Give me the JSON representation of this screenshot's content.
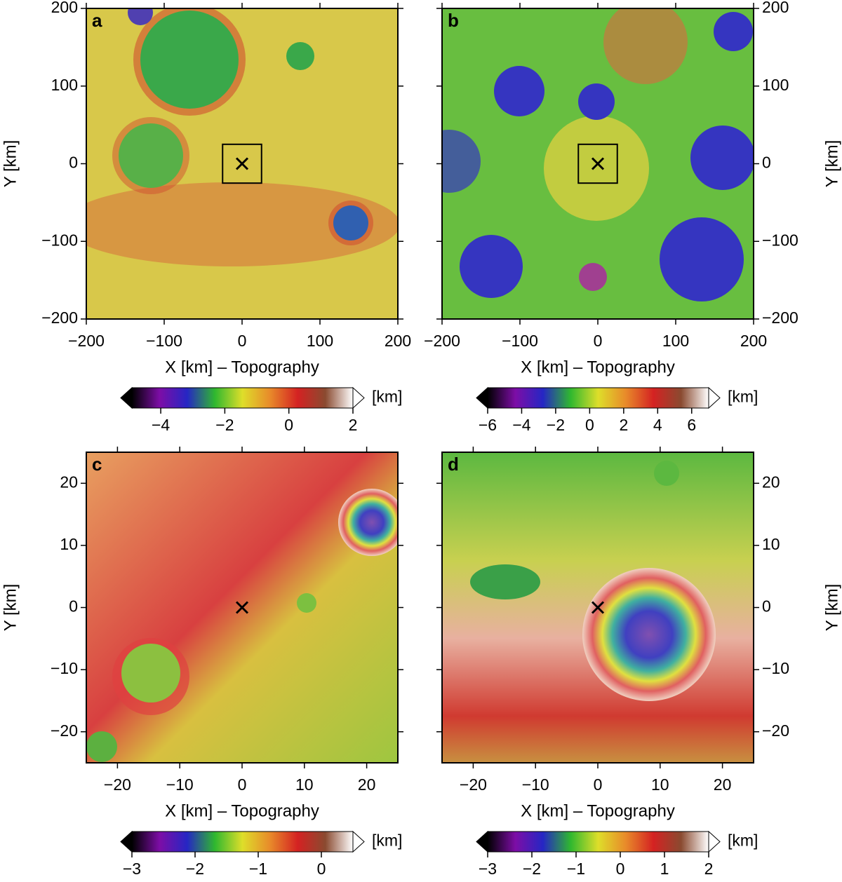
{
  "chart_data": [
    {
      "type": "map",
      "label": "a",
      "xlabel": "X [km] – Topography",
      "ylabel": "Y [km]",
      "y_axis_side": "left",
      "xlim": [
        -200,
        200
      ],
      "ylim": [
        -200,
        200
      ],
      "xticks": [
        {
          "value": -200,
          "label": "−200"
        },
        {
          "value": -100,
          "label": "−100"
        },
        0,
        100,
        200
      ],
      "yticks": [
        {
          "value": -200,
          "label": "−200"
        },
        {
          "value": -100,
          "label": "−100"
        },
        0,
        100,
        200
      ],
      "marker": {
        "x": 0,
        "y": 0
      },
      "box": {
        "x": [
          -25,
          25
        ],
        "y": [
          -25,
          25
        ]
      },
      "colorbar": {
        "label": "[km]",
        "lim": [
          -4.9,
          2
        ],
        "ticks": [
          {
            "value": -4,
            "label": "−4"
          },
          {
            "value": -2,
            "label": "−2"
          },
          0,
          2
        ],
        "colors": [
          "#000000",
          "#7d0da6",
          "#2626c4",
          "#2fb82f",
          "#dede2a",
          "#e88a2a",
          "#d42222",
          "#8a4a30",
          "#ffffff"
        ]
      }
    },
    {
      "type": "map",
      "label": "b",
      "xlabel": "X [km] – Topography",
      "ylabel": "Y [km]",
      "y_axis_side": "right",
      "xlim": [
        -200,
        200
      ],
      "ylim": [
        -200,
        200
      ],
      "xticks": [
        {
          "value": -200,
          "label": "−200"
        },
        {
          "value": -100,
          "label": "−100"
        },
        0,
        100,
        200
      ],
      "yticks": [
        {
          "value": -200,
          "label": "−200"
        },
        {
          "value": -100,
          "label": "−100"
        },
        0,
        100,
        200
      ],
      "marker": {
        "x": 0,
        "y": 0
      },
      "box": {
        "x": [
          -25,
          25
        ],
        "y": [
          -25,
          25
        ]
      },
      "colorbar": {
        "label": "[km]",
        "lim": [
          -6,
          7
        ],
        "ticks": [
          {
            "value": -6,
            "label": "−6"
          },
          {
            "value": -4,
            "label": "−4"
          },
          {
            "value": -2,
            "label": "−2"
          },
          0,
          2,
          4,
          6
        ],
        "colors": [
          "#000000",
          "#7d0da6",
          "#2626c4",
          "#2fb82f",
          "#dede2a",
          "#e88a2a",
          "#d42222",
          "#8a4a30",
          "#ffffff"
        ]
      }
    },
    {
      "type": "map",
      "label": "c",
      "xlabel": "X [km] – Topography",
      "ylabel": "Y [km]",
      "y_axis_side": "left",
      "xlim": [
        -25,
        25
      ],
      "ylim": [
        -25,
        25
      ],
      "xticks": [
        {
          "value": -20,
          "label": "−20"
        },
        {
          "value": -10,
          "label": "−10"
        },
        0,
        10,
        20
      ],
      "yticks": [
        {
          "value": -20,
          "label": "−20"
        },
        {
          "value": -10,
          "label": "−10"
        },
        0,
        10,
        20
      ],
      "marker": {
        "x": 0,
        "y": 0
      },
      "colorbar": {
        "label": "[km]",
        "lim": [
          -3,
          0.5
        ],
        "ticks": [
          {
            "value": -3,
            "label": "−3"
          },
          {
            "value": -2,
            "label": "−2"
          },
          {
            "value": -1,
            "label": "−1"
          },
          0
        ],
        "colors": [
          "#000000",
          "#7d0da6",
          "#2626c4",
          "#2fb82f",
          "#dede2a",
          "#e88a2a",
          "#d42222",
          "#8a4a30",
          "#ffffff"
        ]
      }
    },
    {
      "type": "map",
      "label": "d",
      "xlabel": "X [km] – Topography",
      "ylabel": "Y [km]",
      "y_axis_side": "right",
      "xlim": [
        -25,
        25
      ],
      "ylim": [
        -25,
        25
      ],
      "xticks": [
        {
          "value": -20,
          "label": "−20"
        },
        {
          "value": -10,
          "label": "−10"
        },
        0,
        10,
        20
      ],
      "yticks": [
        {
          "value": -20,
          "label": "−20"
        },
        {
          "value": -10,
          "label": "−10"
        },
        0,
        10,
        20
      ],
      "marker": {
        "x": 0,
        "y": 0
      },
      "colorbar": {
        "label": "[km]",
        "lim": [
          -3,
          2
        ],
        "ticks": [
          {
            "value": -3,
            "label": "−3"
          },
          {
            "value": -2,
            "label": "−2"
          },
          {
            "value": -1,
            "label": "−1"
          },
          0,
          1,
          2
        ],
        "colors": [
          "#000000",
          "#7d0da6",
          "#2626c4",
          "#2fb82f",
          "#dede2a",
          "#e88a2a",
          "#d42222",
          "#8a4a30",
          "#ffffff"
        ]
      }
    }
  ]
}
